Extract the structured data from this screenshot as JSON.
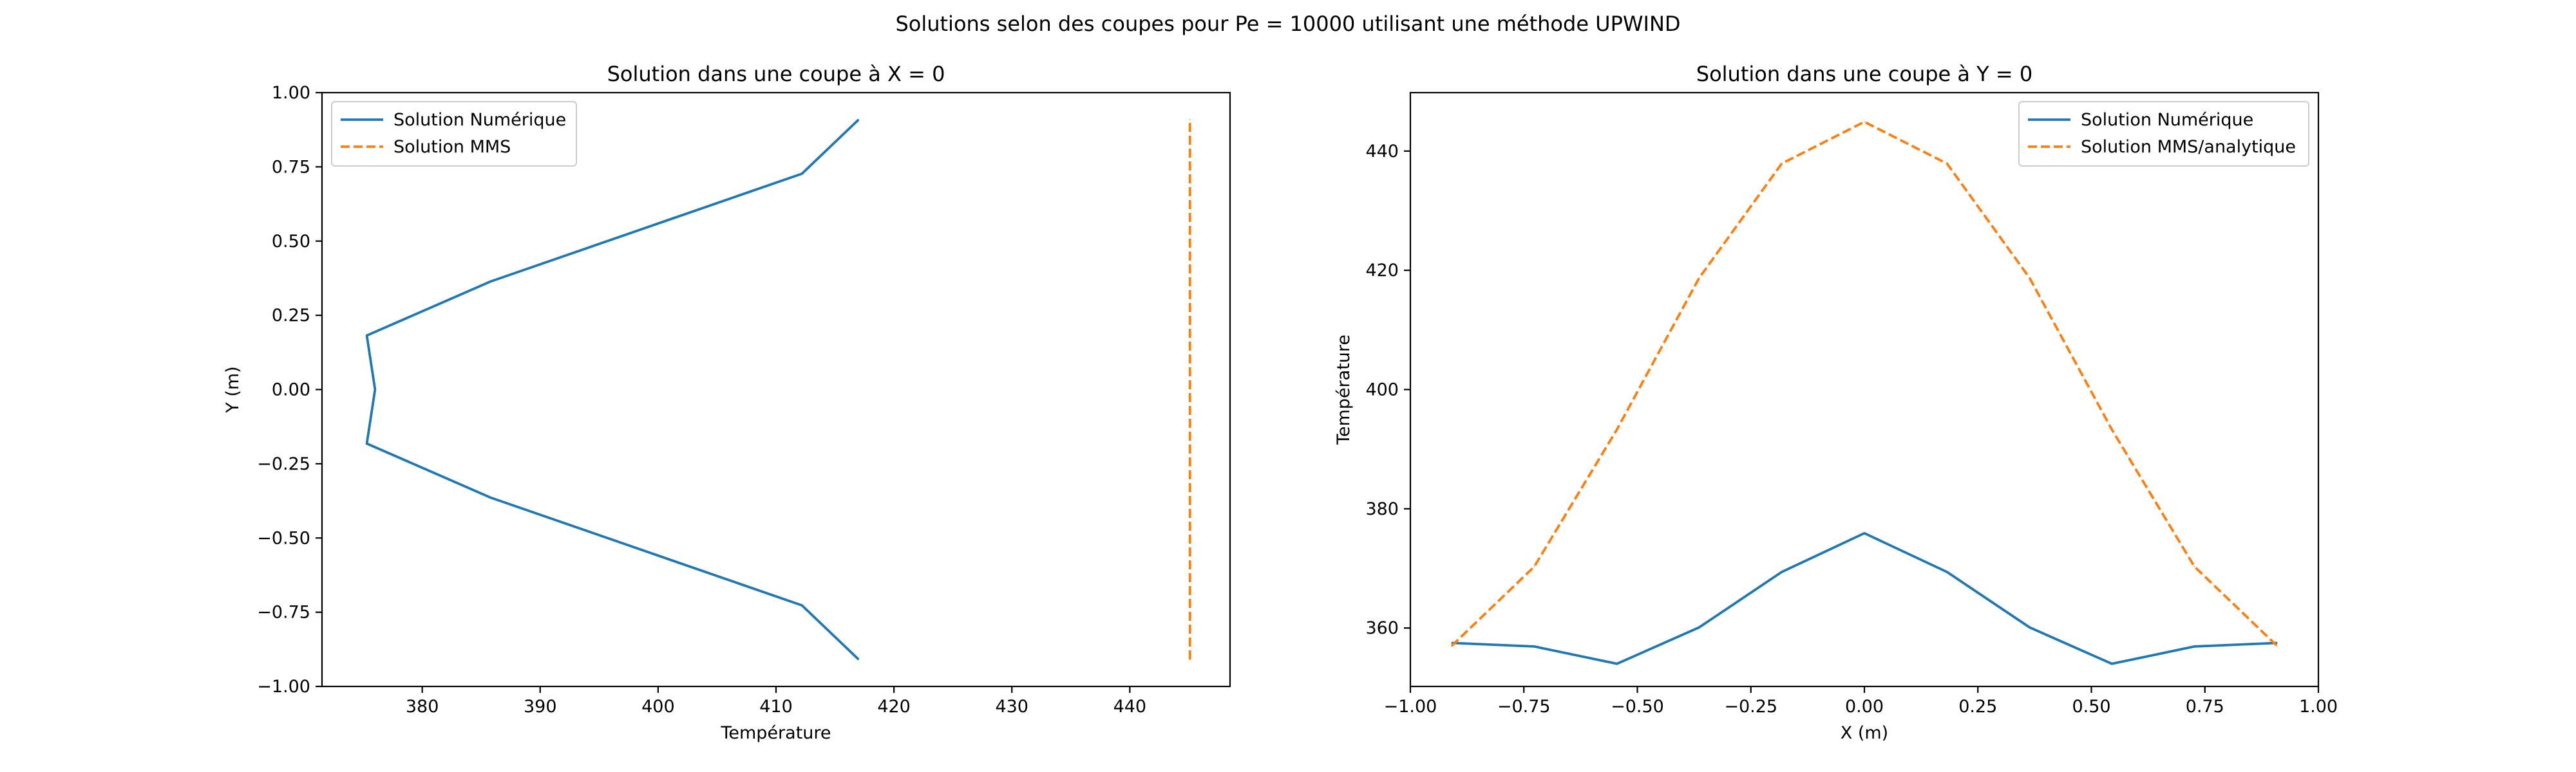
{
  "figure": {
    "suptitle": "Solutions selon des coupes pour Pe = 10000 utilisant une méthode UPWIND"
  },
  "colors": {
    "numeric": "#1f77b4",
    "mms": "#ff7f0e"
  },
  "chart_data": [
    {
      "type": "line",
      "title": "Solution dans une coupe à X = 0",
      "xlabel": "Température",
      "ylabel": "Y (m)",
      "xlim": [
        371.5,
        448.5
      ],
      "ylim": [
        -1.0,
        1.0
      ],
      "xticks": [
        380,
        390,
        400,
        410,
        420,
        430,
        440
      ],
      "xtick_labels": [
        "380",
        "390",
        "400",
        "410",
        "420",
        "430",
        "440"
      ],
      "yticks": [
        -1.0,
        -0.75,
        -0.5,
        -0.25,
        0.0,
        0.25,
        0.5,
        0.75,
        1.0
      ],
      "ytick_labels": [
        "−1.00",
        "−0.75",
        "−0.50",
        "−0.25",
        "0.00",
        "0.25",
        "0.50",
        "0.75",
        "1.00"
      ],
      "grid": false,
      "legend": "upper left",
      "series": [
        {
          "name": "Solution Numérique",
          "style": "solid",
          "color": "#1f77b4",
          "x": [
            417.0,
            412.2,
            385.8,
            375.3,
            376.0,
            375.3,
            385.8,
            412.2,
            417.0
          ],
          "y": [
            -0.909,
            -0.727,
            -0.364,
            -0.182,
            0.0,
            0.182,
            0.364,
            0.727,
            0.909
          ]
        },
        {
          "name": "Solution MMS",
          "style": "dashed",
          "color": "#ff7f0e",
          "x": [
            445.1,
            445.1
          ],
          "y": [
            -0.909,
            0.909
          ]
        }
      ]
    },
    {
      "type": "line",
      "title": "Solution dans une coupe à Y = 0",
      "xlabel": "X (m)",
      "ylabel": "Température",
      "xlim": [
        -1.0,
        1.0
      ],
      "ylim": [
        350.2,
        449.8
      ],
      "xticks": [
        -1.0,
        -0.75,
        -0.5,
        -0.25,
        0.0,
        0.25,
        0.5,
        0.75,
        1.0
      ],
      "xtick_labels": [
        "−1.00",
        "−0.75",
        "−0.50",
        "−0.25",
        "0.00",
        "0.25",
        "0.50",
        "0.75",
        "1.00"
      ],
      "yticks": [
        360,
        380,
        400,
        420,
        440
      ],
      "ytick_labels": [
        "360",
        "380",
        "400",
        "420",
        "440"
      ],
      "grid": false,
      "legend": "upper right",
      "series": [
        {
          "name": "Solution Numérique",
          "style": "solid",
          "color": "#1f77b4",
          "x": [
            -0.909,
            -0.727,
            -0.545,
            -0.364,
            -0.182,
            0.0,
            0.182,
            0.364,
            0.545,
            0.727,
            0.909
          ],
          "y": [
            357.5,
            356.9,
            354.0,
            360.1,
            369.4,
            375.9,
            369.4,
            360.1,
            354.0,
            356.9,
            357.5
          ]
        },
        {
          "name": "Solution MMS/analytique",
          "style": "dashed",
          "color": "#ff7f0e",
          "x": [
            -0.909,
            -0.727,
            -0.545,
            -0.364,
            -0.182,
            0.0,
            0.182,
            0.364,
            0.545,
            0.727,
            0.909
          ],
          "y": [
            357.0,
            370.3,
            393.3,
            418.7,
            437.9,
            444.9,
            437.9,
            418.7,
            393.3,
            370.3,
            357.0
          ]
        }
      ]
    }
  ]
}
